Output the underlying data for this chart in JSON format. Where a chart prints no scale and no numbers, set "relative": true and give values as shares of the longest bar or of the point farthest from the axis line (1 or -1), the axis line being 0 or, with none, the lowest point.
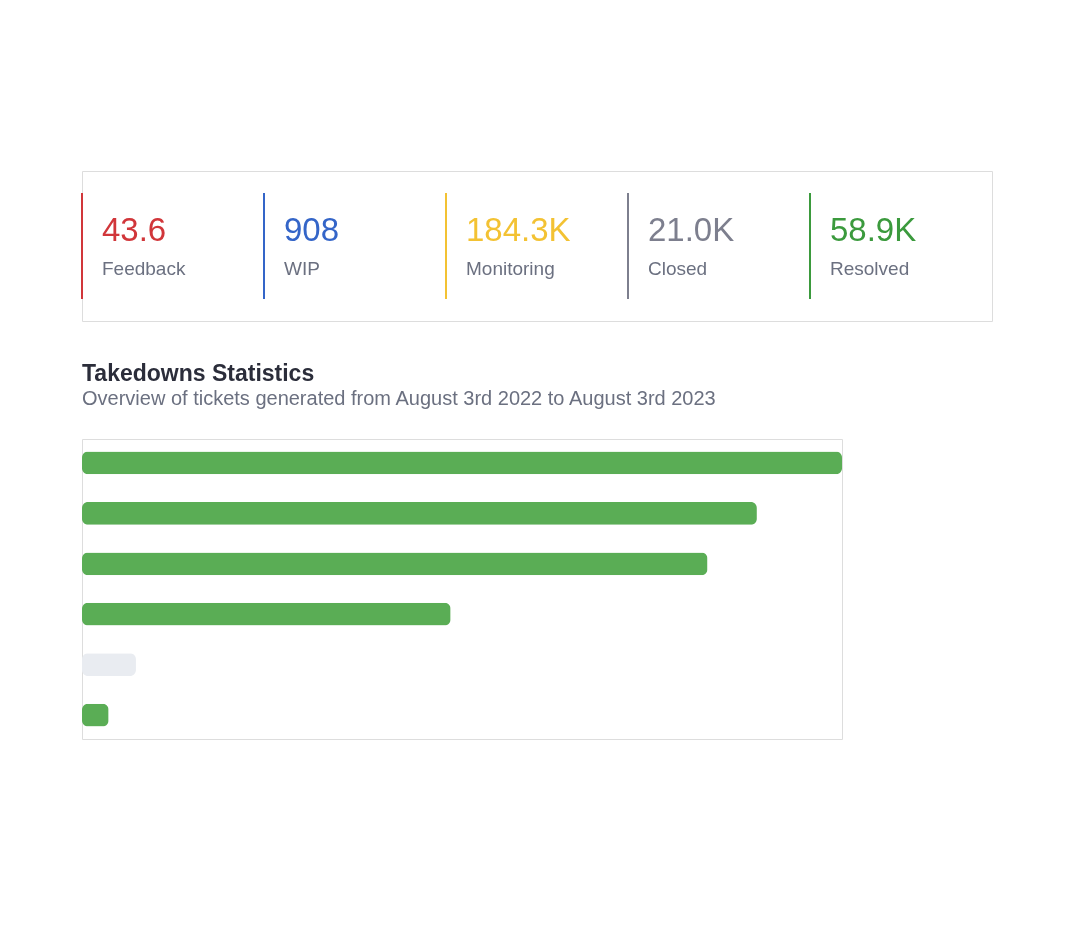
{
  "chart_data": [
    {
      "type": "other",
      "categories": [
        "Feedback",
        "WIP",
        "Monitoring",
        "Closed",
        "Resolved"
      ],
      "value_labels": [
        "43.6",
        "908",
        "184.3K",
        "21.0K",
        "58.9K"
      ],
      "colors": [
        "#d1363a",
        "#3465c8",
        "#f3c233",
        "#7d7f8e",
        "#3b9a3d"
      ]
    },
    {
      "type": "bar",
      "orientation": "horizontal",
      "relative": true,
      "title": "Takedowns Statistics",
      "subtitle": "Overview of tickets generated from August 3rd 2022 to August 3rd 2023",
      "categories": [
        null,
        null,
        null,
        null,
        null,
        null
      ],
      "values": [
        1.0,
        0.888,
        0.823,
        0.485,
        0.071,
        0.035
      ],
      "colors": [
        "#5aad55",
        "#5aad55",
        "#5aad55",
        "#5aad55",
        "#e9ecf1",
        "#5aad55"
      ],
      "grid": false
    }
  ]
}
